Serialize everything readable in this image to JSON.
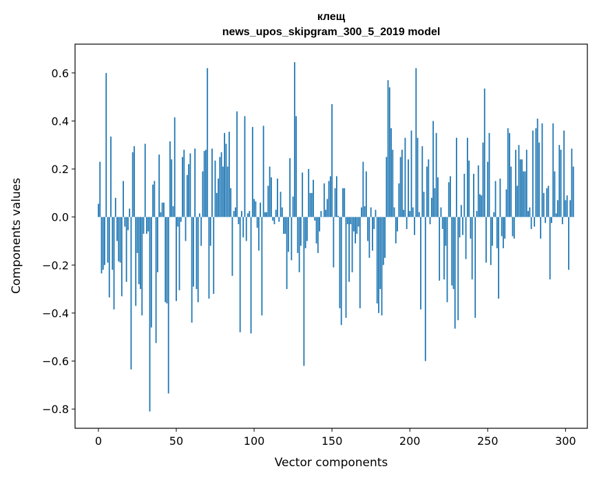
{
  "chart_data": {
    "type": "bar",
    "title": "клещ",
    "subtitle": "news_upos_skipgram_300_5_2019 model",
    "xlabel": "Vector components",
    "ylabel": "Components values",
    "xlim": [
      -15,
      314
    ],
    "ylim": [
      -0.88,
      0.72
    ],
    "xticks": [
      0,
      50,
      100,
      150,
      200,
      250,
      300
    ],
    "yticks": [
      -0.8,
      -0.6,
      -0.4,
      -0.2,
      0.0,
      0.2,
      0.4,
      0.6
    ],
    "ytick_labels": [
      "−0.8",
      "−0.6",
      "−0.4",
      "−0.2",
      "0.0",
      "0.2",
      "0.4",
      "0.6"
    ],
    "xtick_labels": [
      "0",
      "50",
      "100",
      "150",
      "200",
      "250",
      "300"
    ],
    "bar_color": "#1f77b4",
    "values": [
      0.055,
      0.23,
      -0.235,
      -0.22,
      -0.2,
      0.6,
      -0.19,
      -0.335,
      0.335,
      -0.22,
      -0.385,
      0.08,
      -0.1,
      -0.185,
      -0.19,
      -0.33,
      0.15,
      -0.04,
      -0.27,
      -0.055,
      0.035,
      -0.635,
      0.27,
      0.295,
      -0.37,
      -0.15,
      -0.28,
      -0.3,
      -0.41,
      -0.07,
      0.305,
      -0.07,
      -0.06,
      -0.81,
      -0.46,
      0.135,
      0.15,
      -0.525,
      -0.23,
      0.26,
      0.02,
      0.06,
      0.06,
      -0.355,
      -0.36,
      -0.735,
      0.315,
      0.24,
      0.045,
      0.415,
      -0.35,
      -0.04,
      -0.305,
      -0.02,
      0.25,
      0.28,
      -0.1,
      0.175,
      0.22,
      0.265,
      -0.44,
      -0.29,
      0.285,
      -0.3,
      -0.355,
      0.015,
      -0.12,
      0.19,
      0.275,
      0.28,
      0.62,
      -0.34,
      -0.12,
      0.285,
      -0.32,
      0.235,
      0.1,
      0.16,
      0.25,
      0.27,
      0.21,
      0.35,
      0.305,
      0.21,
      0.355,
      0.12,
      -0.245,
      0.025,
      0.04,
      0.44,
      -0.03,
      -0.48,
      0.025,
      -0.085,
      0.42,
      -0.1,
      0.015,
      0.025,
      -0.485,
      0.375,
      0.075,
      0.065,
      -0.045,
      -0.14,
      0.06,
      -0.41,
      0.38,
      0.02,
      0.02,
      0.13,
      0.21,
      0.165,
      -0.015,
      -0.03,
      0.03,
      0.16,
      -0.02,
      0.105,
      0.04,
      -0.07,
      -0.07,
      -0.3,
      -0.145,
      0.245,
      -0.18,
      0.085,
      0.645,
      0.42,
      -0.15,
      -0.23,
      -0.12,
      0.185,
      -0.62,
      -0.13,
      -0.1,
      0.2,
      0.1,
      0.1,
      0.155,
      -0.015,
      -0.11,
      -0.15,
      -0.06,
      0.025,
      0.0,
      0.14,
      0.03,
      0.075,
      0.15,
      0.17,
      0.47,
      -0.21,
      0.12,
      0.17,
      0.005,
      -0.38,
      -0.45,
      0.12,
      0.12,
      -0.42,
      -0.03,
      -0.27,
      -0.03,
      -0.23,
      -0.06,
      -0.11,
      -0.07,
      -0.04,
      -0.38,
      0.04,
      0.23,
      0.045,
      0.19,
      -0.1,
      -0.17,
      0.04,
      -0.14,
      -0.05,
      0.03,
      -0.36,
      -0.4,
      -0.3,
      -0.41,
      -0.2,
      -0.17,
      0.25,
      0.57,
      0.54,
      0.37,
      0.28,
      0.04,
      -0.11,
      -0.06,
      0.14,
      0.25,
      0.28,
      0.03,
      0.33,
      -0.05,
      0.24,
      0.025,
      0.36,
      0.04,
      -0.075,
      0.62,
      0.33,
      0.02,
      -0.385,
      0.295,
      0.105,
      -0.6,
      0.21,
      0.24,
      -0.03,
      0.08,
      0.4,
      0.12,
      0.35,
      0.165,
      -0.265,
      0.04,
      -0.05,
      -0.26,
      -0.12,
      -0.355,
      0.145,
      0.17,
      -0.285,
      -0.3,
      -0.465,
      0.33,
      -0.43,
      -0.085,
      0.05,
      -0.075,
      0.18,
      -0.175,
      0.33,
      0.235,
      -0.09,
      -0.26,
      0.18,
      -0.42,
      0.025,
      0.215,
      0.095,
      0.09,
      0.31,
      0.535,
      -0.19,
      0.23,
      0.35,
      -0.2,
      -0.12,
      0.02,
      0.15,
      -0.13,
      -0.34,
      0.16,
      -0.08,
      -0.13,
      -0.09,
      0.115,
      0.37,
      0.35,
      0.21,
      -0.08,
      -0.09,
      0.28,
      0.13,
      0.3,
      0.24,
      0.24,
      0.19,
      0.19,
      0.28,
      0.025,
      0.04,
      -0.05,
      0.36,
      -0.04,
      0.37,
      0.41,
      0.31,
      -0.09,
      0.39,
      0.1,
      -0.025,
      0.12,
      0.13,
      -0.26,
      -0.025,
      0.39,
      0.19,
      0.015,
      0.07,
      0.3,
      0.28,
      -0.03,
      0.36,
      0.07,
      0.09,
      -0.22,
      0.07,
      0.285,
      0.21
    ]
  }
}
